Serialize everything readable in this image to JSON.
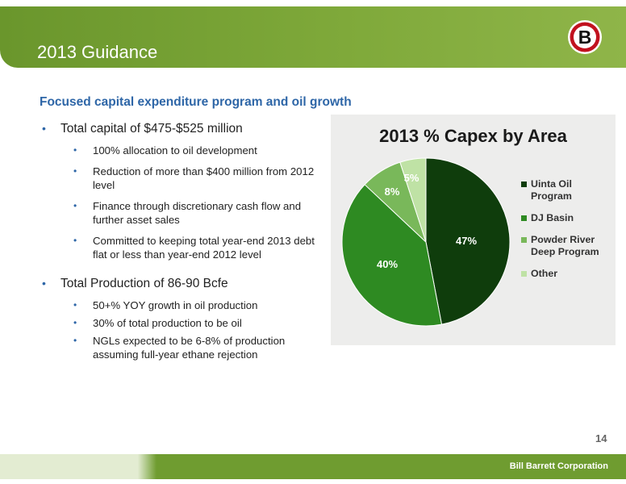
{
  "header": {
    "title": "2013 Guidance"
  },
  "subtitle": "Focused capital expenditure program and oil growth",
  "bullets": [
    {
      "text": "Total capital of $475-$525 million",
      "sub": [
        "100% allocation to oil development",
        "Reduction of more than $400 million from 2012 level",
        "Finance through discretionary cash flow and further asset sales",
        "Committed to keeping total year-end 2013 debt flat or less than year-end 2012 level"
      ]
    },
    {
      "text": "Total Production of 86-90 Bcfe",
      "sub": [
        "50+% YOY growth in oil production",
        "30% of total production to be oil",
        "NGLs expected to be 6-8% of production assuming full-year ethane rejection"
      ]
    }
  ],
  "chart_data": {
    "type": "pie",
    "title": "2013 % Capex by Area",
    "legend_position": "right",
    "slices": [
      {
        "label": "Uinta Oil Program",
        "value": 47,
        "display": "47%",
        "color": "#0f3d0c"
      },
      {
        "label": "DJ Basin",
        "value": 40,
        "display": "40%",
        "color": "#2e8a22"
      },
      {
        "label": "Powder River Deep Program",
        "value": 8,
        "display": "8%",
        "color": "#79b85a"
      },
      {
        "label": "Other",
        "value": 5,
        "display": "5%",
        "color": "#bfe2a5"
      }
    ]
  },
  "page_number": "14",
  "footer": {
    "company": "Bill Barrett Corporation"
  },
  "logo": {
    "letter": "B",
    "ring_color": "#c1121f"
  }
}
